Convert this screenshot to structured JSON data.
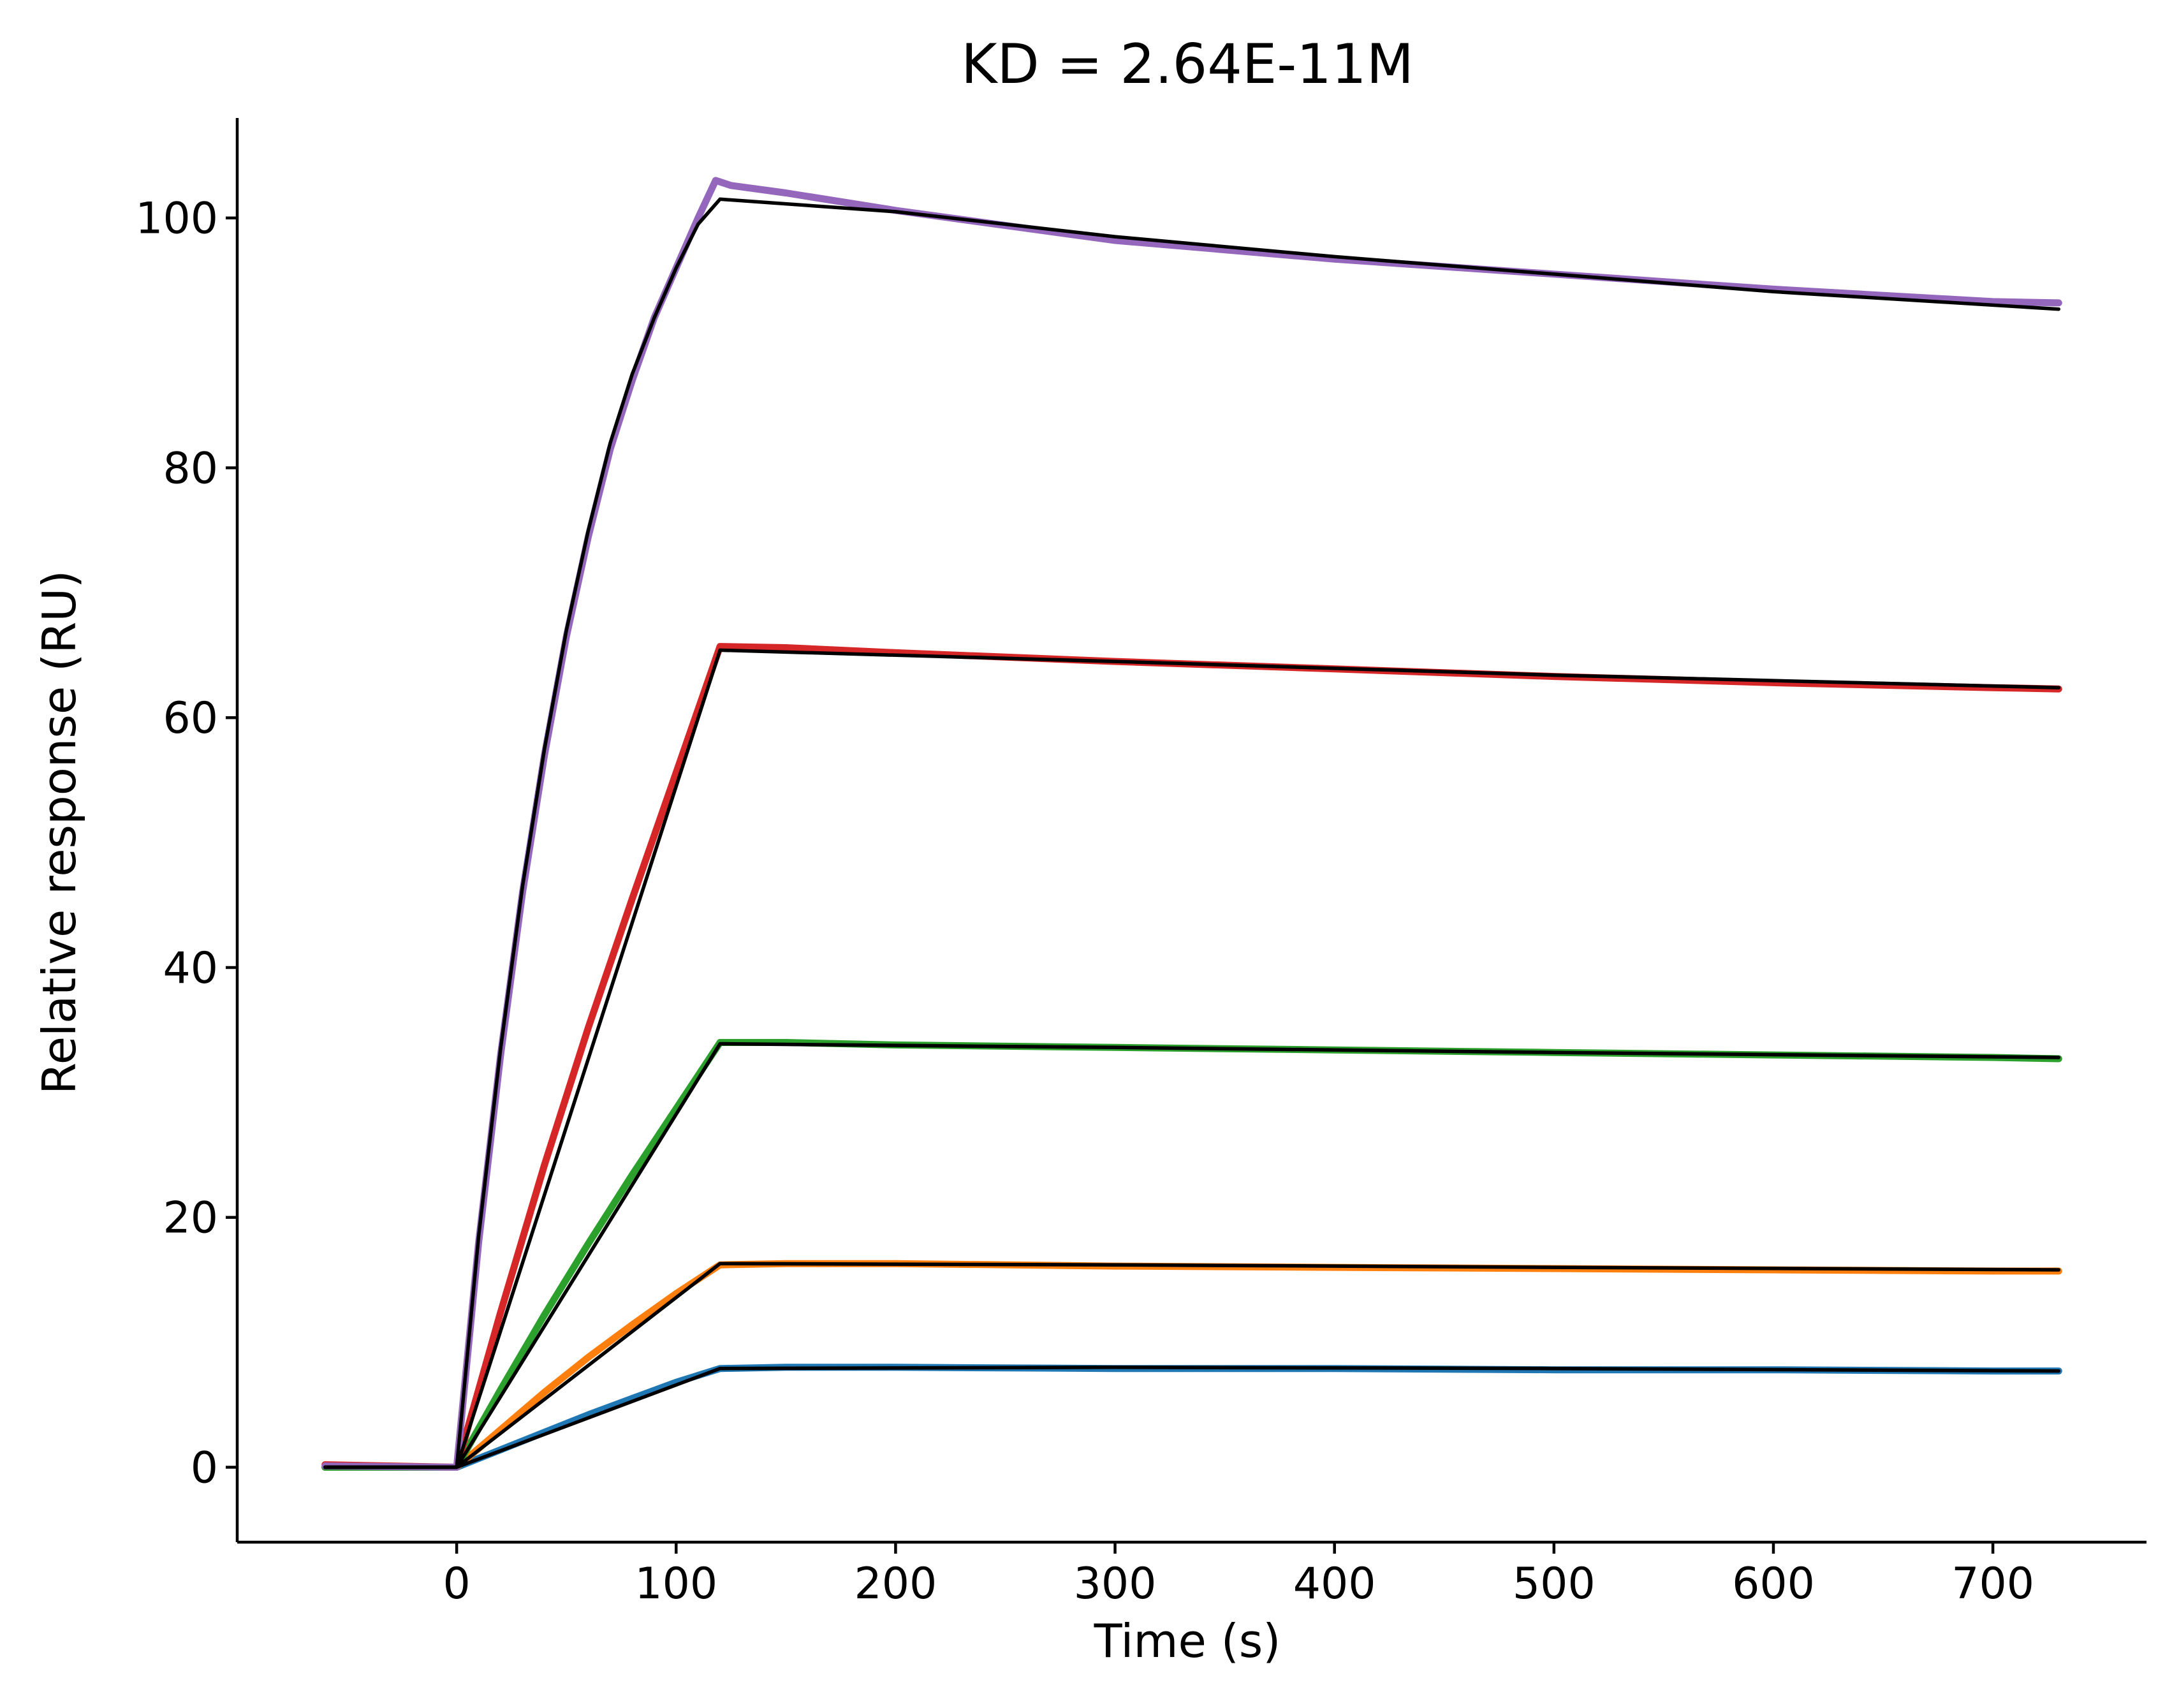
{
  "chart_data": {
    "type": "line",
    "title": "KD = 2.64E-11M",
    "xlabel": "Time (s)",
    "ylabel": "Relative response (RU)",
    "xlim": [
      -100,
      770
    ],
    "ylim": [
      -6,
      108
    ],
    "x_ticks": [
      0,
      100,
      200,
      300,
      400,
      500,
      600,
      700
    ],
    "y_ticks": [
      0,
      20,
      40,
      60,
      80,
      100
    ],
    "grid": false,
    "legend": "none",
    "series": [
      {
        "role": "data",
        "color": "#1f77b4",
        "points": [
          [
            -60,
            0
          ],
          [
            0,
            0
          ],
          [
            20,
            1.4
          ],
          [
            40,
            2.8
          ],
          [
            60,
            4.2
          ],
          [
            80,
            5.5
          ],
          [
            100,
            6.8
          ],
          [
            120,
            7.9
          ],
          [
            150,
            8.0
          ],
          [
            200,
            8.0
          ],
          [
            300,
            7.9
          ],
          [
            400,
            7.9
          ],
          [
            500,
            7.8
          ],
          [
            600,
            7.8
          ],
          [
            700,
            7.7
          ],
          [
            730,
            7.7
          ]
        ]
      },
      {
        "role": "data",
        "color": "#ff7f0e",
        "points": [
          [
            -60,
            0
          ],
          [
            0,
            0
          ],
          [
            20,
            3.0
          ],
          [
            40,
            6.0
          ],
          [
            60,
            8.8
          ],
          [
            80,
            11.4
          ],
          [
            100,
            13.9
          ],
          [
            120,
            16.2
          ],
          [
            150,
            16.3
          ],
          [
            200,
            16.3
          ],
          [
            300,
            16.1
          ],
          [
            400,
            16.0
          ],
          [
            500,
            15.9
          ],
          [
            600,
            15.8
          ],
          [
            700,
            15.7
          ],
          [
            730,
            15.7
          ]
        ]
      },
      {
        "role": "data",
        "color": "#2ca02c",
        "points": [
          [
            -60,
            0
          ],
          [
            0,
            0
          ],
          [
            20,
            6.2
          ],
          [
            40,
            12.2
          ],
          [
            60,
            17.9
          ],
          [
            80,
            23.4
          ],
          [
            100,
            28.7
          ],
          [
            120,
            34.0
          ],
          [
            150,
            34.0
          ],
          [
            200,
            33.8
          ],
          [
            300,
            33.6
          ],
          [
            400,
            33.4
          ],
          [
            500,
            33.2
          ],
          [
            600,
            33.0
          ],
          [
            700,
            32.8
          ],
          [
            730,
            32.7
          ]
        ]
      },
      {
        "role": "data",
        "color": "#d62728",
        "points": [
          [
            -60,
            0.2
          ],
          [
            0,
            0
          ],
          [
            20,
            12.4
          ],
          [
            40,
            24.2
          ],
          [
            60,
            35.2
          ],
          [
            80,
            45.5
          ],
          [
            100,
            55.6
          ],
          [
            120,
            65.7
          ],
          [
            150,
            65.6
          ],
          [
            200,
            65.2
          ],
          [
            300,
            64.5
          ],
          [
            400,
            63.9
          ],
          [
            500,
            63.3
          ],
          [
            600,
            62.8
          ],
          [
            700,
            62.4
          ],
          [
            730,
            62.3
          ]
        ]
      },
      {
        "role": "data",
        "color": "#9467bd",
        "points": [
          [
            -60,
            0.1
          ],
          [
            0,
            0
          ],
          [
            10,
            18.0
          ],
          [
            20,
            33.0
          ],
          [
            30,
            46.0
          ],
          [
            40,
            57.0
          ],
          [
            50,
            66.5
          ],
          [
            60,
            74.5
          ],
          [
            70,
            81.5
          ],
          [
            80,
            87.0
          ],
          [
            90,
            92.0
          ],
          [
            100,
            96.0
          ],
          [
            110,
            100.0
          ],
          [
            118,
            103.0
          ],
          [
            125,
            102.6
          ],
          [
            150,
            102.0
          ],
          [
            200,
            100.6
          ],
          [
            300,
            98.2
          ],
          [
            400,
            96.7
          ],
          [
            500,
            95.5
          ],
          [
            600,
            94.3
          ],
          [
            700,
            93.3
          ],
          [
            730,
            93.2
          ]
        ]
      },
      {
        "role": "fit",
        "color": "#000000",
        "points": [
          [
            -60,
            0
          ],
          [
            0,
            0
          ],
          [
            120,
            7.9
          ],
          [
            300,
            8.0
          ],
          [
            500,
            7.9
          ],
          [
            730,
            7.7
          ]
        ]
      },
      {
        "role": "fit",
        "color": "#000000",
        "points": [
          [
            -60,
            0
          ],
          [
            0,
            0
          ],
          [
            120,
            16.3
          ],
          [
            300,
            16.2
          ],
          [
            500,
            16.0
          ],
          [
            730,
            15.8
          ]
        ]
      },
      {
        "role": "fit",
        "color": "#000000",
        "points": [
          [
            -60,
            0
          ],
          [
            0,
            0
          ],
          [
            120,
            33.9
          ],
          [
            300,
            33.6
          ],
          [
            500,
            33.2
          ],
          [
            730,
            32.8
          ]
        ]
      },
      {
        "role": "fit",
        "color": "#000000",
        "points": [
          [
            -60,
            0
          ],
          [
            0,
            0
          ],
          [
            120,
            65.4
          ],
          [
            300,
            64.5
          ],
          [
            500,
            63.4
          ],
          [
            730,
            62.4
          ]
        ]
      },
      {
        "role": "fit",
        "color": "#000000",
        "points": [
          [
            -60,
            0
          ],
          [
            0,
            0
          ],
          [
            10,
            18.5
          ],
          [
            20,
            33.5
          ],
          [
            30,
            46.5
          ],
          [
            40,
            57.5
          ],
          [
            50,
            67.0
          ],
          [
            60,
            75.0
          ],
          [
            70,
            82.0
          ],
          [
            80,
            87.5
          ],
          [
            90,
            92.0
          ],
          [
            100,
            96.0
          ],
          [
            110,
            99.5
          ],
          [
            120,
            101.5
          ],
          [
            200,
            100.5
          ],
          [
            300,
            98.5
          ],
          [
            400,
            96.9
          ],
          [
            500,
            95.5
          ],
          [
            600,
            94.1
          ],
          [
            730,
            92.7
          ]
        ]
      }
    ]
  }
}
